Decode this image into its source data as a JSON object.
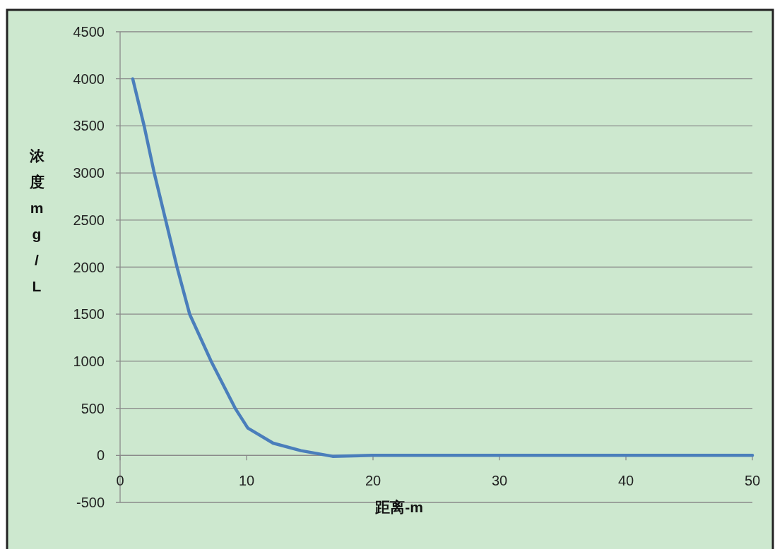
{
  "chart_data": {
    "type": "line",
    "xlabel": "距离-m",
    "ylabel": "浓度mg/L",
    "xlim": [
      0,
      50
    ],
    "ylim": [
      -500,
      4500
    ],
    "xticks": [
      0,
      10,
      20,
      30,
      40,
      50
    ],
    "yticks": [
      -500,
      0,
      500,
      1000,
      1500,
      2000,
      2500,
      3000,
      3500,
      4000,
      4500
    ],
    "grid": "y",
    "marker": "none",
    "line_style": "solid",
    "series": [
      {
        "color": "#4a7ebb",
        "x": [
          1,
          1.9,
          2.7,
          3.6,
          4.5,
          5.5,
          7.2,
          9.1,
          10.1,
          12.1,
          14.3,
          16.8,
          19.9,
          25,
          30,
          35,
          40,
          45,
          50
        ],
        "values": [
          4000,
          3500,
          3000,
          2500,
          2000,
          1500,
          1000,
          500,
          290,
          130,
          50,
          -10,
          0,
          0,
          0,
          0,
          0,
          0,
          0
        ]
      }
    ]
  }
}
